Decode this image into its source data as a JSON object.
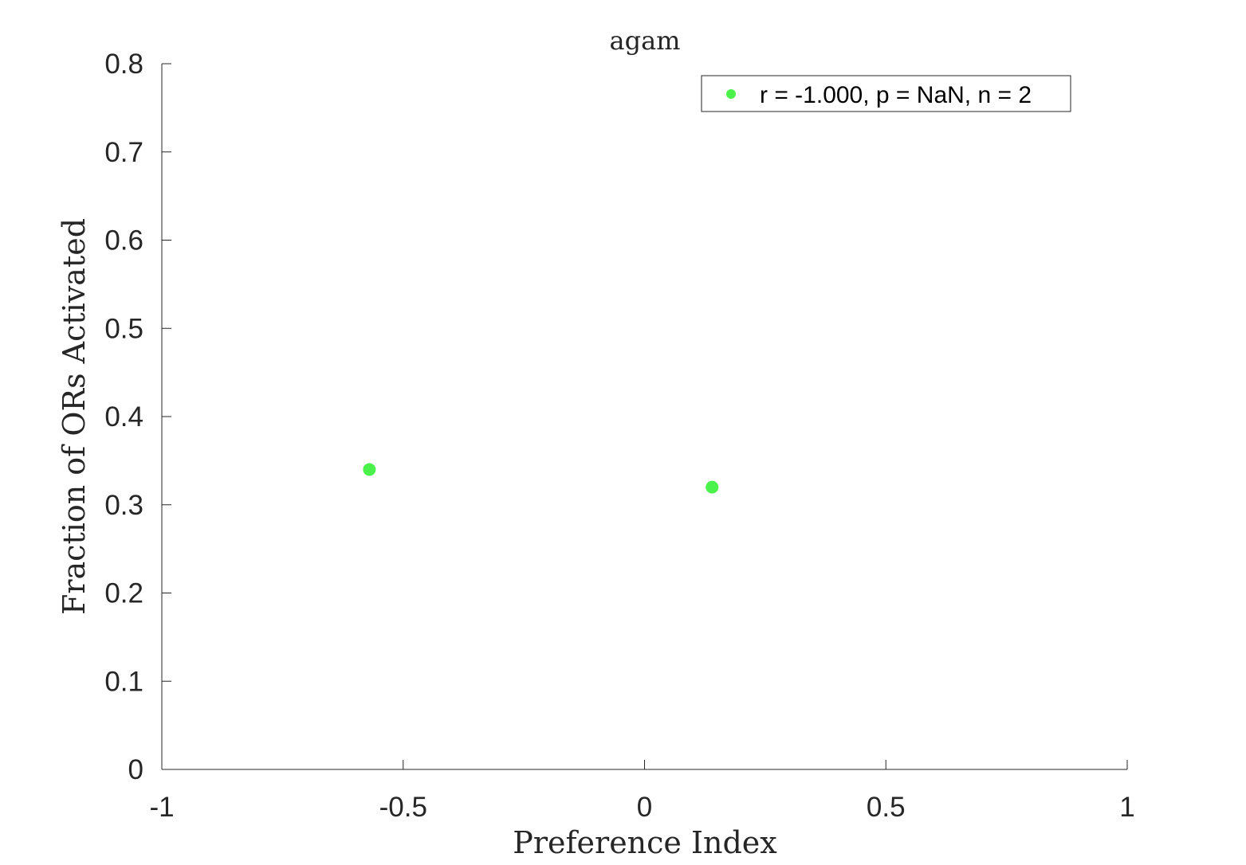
{
  "chart_data": {
    "type": "scatter",
    "title": "agam",
    "xlabel": "Preference Index",
    "ylabel": "Fraction of ORs Activated",
    "xlim": [
      -1,
      1
    ],
    "ylim": [
      0,
      0.8
    ],
    "xticks": [
      -1,
      -0.5,
      0,
      0.5,
      1
    ],
    "xtick_labels": [
      "-1",
      "-0.5",
      "0",
      "0.5",
      "1"
    ],
    "yticks": [
      0,
      0.1,
      0.2,
      0.3,
      0.4,
      0.5,
      0.6,
      0.7,
      0.8
    ],
    "ytick_labels": [
      "0",
      "0.1",
      "0.2",
      "0.3",
      "0.4",
      "0.5",
      "0.6",
      "0.7",
      "0.8"
    ],
    "grid": false,
    "legend_position": "top-right",
    "series": [
      {
        "name": "r = -1.000, p = NaN, n = 2",
        "color": "#4cf24c",
        "x": [
          -0.57,
          0.14
        ],
        "y": [
          0.34,
          0.32
        ]
      }
    ]
  }
}
